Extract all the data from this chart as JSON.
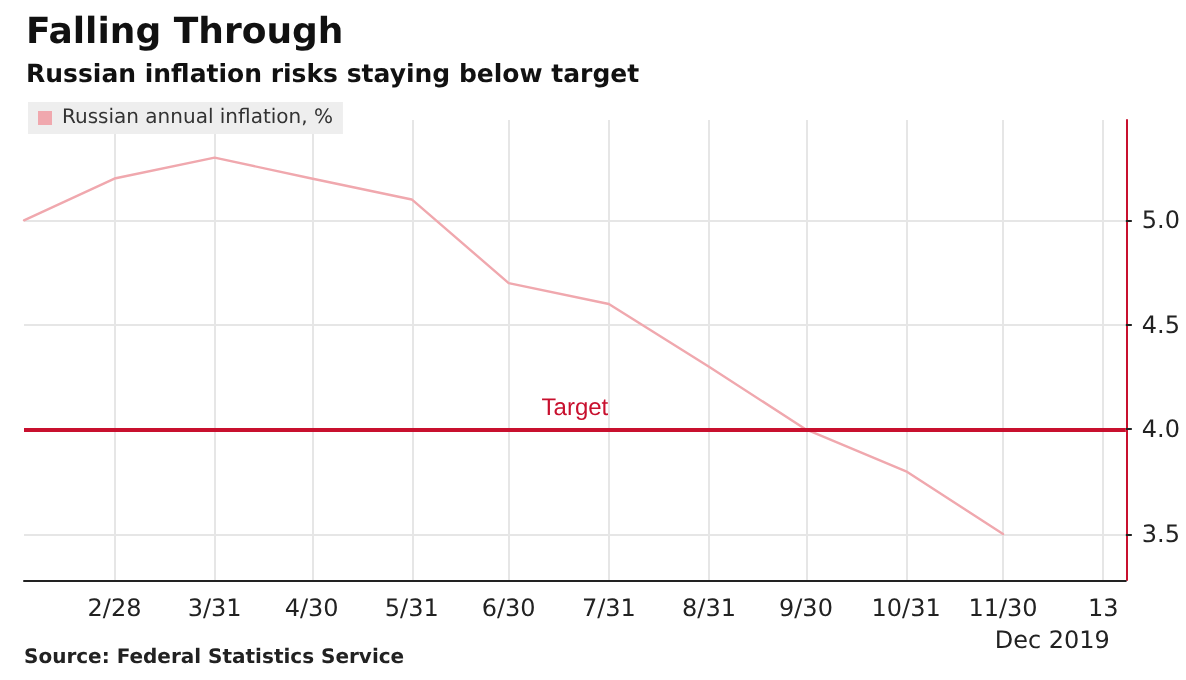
{
  "chart_data": {
    "type": "line",
    "title": "Falling Through",
    "subtitle": "Russian inflation risks staying below target",
    "xlabel": "Dec 2019",
    "x": [
      "2019-01-31",
      "2019-02-28",
      "2019-03-31",
      "2019-04-30",
      "2019-05-31",
      "2019-06-30",
      "2019-07-31",
      "2019-08-31",
      "2019-09-30",
      "2019-10-31",
      "2019-11-30"
    ],
    "series": [
      {
        "name": "Russian annual inflation, %",
        "color": "#f0a8ae",
        "values": [
          5.0,
          5.2,
          5.3,
          5.2,
          5.1,
          4.7,
          4.6,
          4.3,
          4.0,
          3.8,
          3.5
        ]
      }
    ],
    "xlim": [
      "2019-01-31",
      "2020-01-07"
    ],
    "xticks": [
      {
        "value": "2019-02-28",
        "label": "2/28"
      },
      {
        "value": "2019-03-31",
        "label": "3/31"
      },
      {
        "value": "2019-04-30",
        "label": "4/30"
      },
      {
        "value": "2019-05-31",
        "label": "5/31"
      },
      {
        "value": "2019-06-30",
        "label": "6/30"
      },
      {
        "value": "2019-07-31",
        "label": "7/31"
      },
      {
        "value": "2019-08-31",
        "label": "8/31"
      },
      {
        "value": "2019-09-30",
        "label": "9/30"
      },
      {
        "value": "2019-10-31",
        "label": "10/31"
      },
      {
        "value": "2019-11-30",
        "label": "11/30"
      },
      {
        "value": "2019-12-31",
        "label": "13"
      }
    ],
    "ylim": [
      3.28,
      5.48
    ],
    "yticks": [
      3.5,
      {
        "value": 4,
        "label": "4.0"
      },
      4.5,
      {
        "value": 5,
        "label": "5.0"
      }
    ],
    "ref_lines": [
      {
        "axis": "y",
        "value": 4.0,
        "label": "Target",
        "color": "#c8102e"
      }
    ],
    "annotations": [
      "Source: Federal Statistics Service"
    ],
    "grid": true,
    "legend": "top left",
    "marker": "none",
    "line_style": "solid"
  }
}
